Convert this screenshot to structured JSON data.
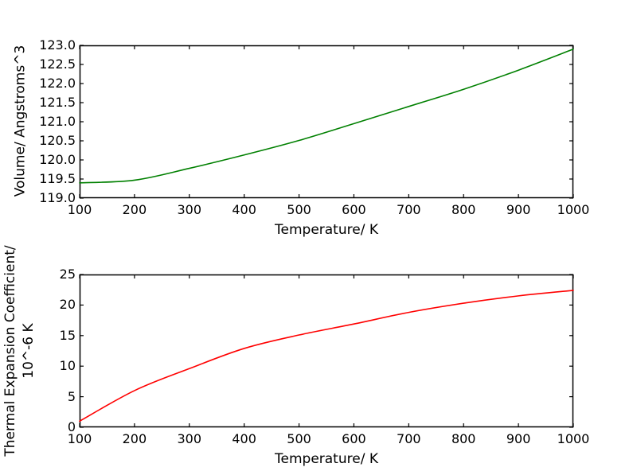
{
  "figure": {
    "background": "#ffffff",
    "frame_color": "#000000",
    "text_color": "#000000"
  },
  "chart_data": [
    {
      "type": "line",
      "title": "",
      "xlabel": "Temperature/ K",
      "ylabel": "Volume/ Angstroms^3",
      "ylabel_line1": "Volume/ Angstroms^3",
      "ylabel_line2": "",
      "x": [
        100,
        200,
        300,
        400,
        500,
        600,
        700,
        800,
        900,
        1000
      ],
      "series": [
        {
          "name": "volume",
          "color": "#008000",
          "values": [
            119.4,
            119.47,
            119.78,
            120.13,
            120.51,
            120.95,
            121.4,
            121.85,
            122.35,
            122.9
          ]
        }
      ],
      "xlim": [
        100,
        1000
      ],
      "ylim": [
        119.0,
        123.0
      ],
      "xticks": [
        100,
        200,
        300,
        400,
        500,
        600,
        700,
        800,
        900,
        1000
      ],
      "xtick_labels": [
        "100",
        "200",
        "300",
        "400",
        "500",
        "600",
        "700",
        "800",
        "900",
        "1000"
      ],
      "yticks": [
        119.0,
        119.5,
        120.0,
        120.5,
        121.0,
        121.5,
        122.0,
        122.5,
        123.0
      ],
      "ytick_labels": [
        "119.0",
        "119.5",
        "120.0",
        "120.5",
        "121.0",
        "121.5",
        "122.0",
        "122.5",
        "123.0"
      ],
      "grid": false,
      "legend": null
    },
    {
      "type": "line",
      "title": "",
      "xlabel": "Temperature/ K",
      "ylabel": "Thermal Expansion Coefficient/ 10^-6 K",
      "ylabel_line1": "Thermal Expansion Coefficient/",
      "ylabel_line2": "10^-6 K",
      "x": [
        100,
        200,
        300,
        400,
        500,
        600,
        700,
        800,
        900,
        1000
      ],
      "series": [
        {
          "name": "thermal-expansion",
          "color": "#ff0000",
          "values": [
            1.0,
            6.0,
            9.6,
            12.9,
            15.1,
            16.9,
            18.8,
            20.3,
            21.5,
            22.4
          ]
        }
      ],
      "xlim": [
        100,
        1000
      ],
      "ylim": [
        0,
        25
      ],
      "xticks": [
        100,
        200,
        300,
        400,
        500,
        600,
        700,
        800,
        900,
        1000
      ],
      "xtick_labels": [
        "100",
        "200",
        "300",
        "400",
        "500",
        "600",
        "700",
        "800",
        "900",
        "1000"
      ],
      "yticks": [
        0,
        5,
        10,
        15,
        20,
        25
      ],
      "ytick_labels": [
        "0",
        "5",
        "10",
        "15",
        "20",
        "25"
      ],
      "grid": false,
      "legend": null
    }
  ]
}
